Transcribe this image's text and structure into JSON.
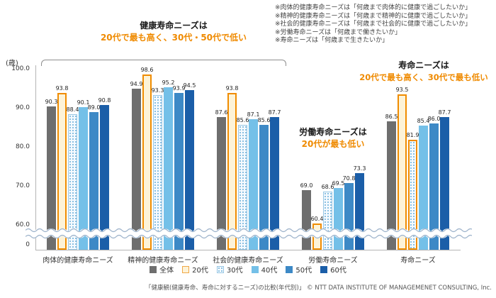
{
  "chart_data": {
    "type": "bar",
    "unit_label": "(歳)",
    "categories": [
      "肉体的健康寿命ニーズ",
      "精神的健康寿命ニーズ",
      "社会的健康寿命ニーズ",
      "労働寿命ニーズ",
      "寿命ニーズ"
    ],
    "series": [
      {
        "name": "全体",
        "color": "#6e6e6e",
        "values": [
          90.3,
          94.9,
          87.6,
          69.0,
          86.5
        ]
      },
      {
        "name": "20代",
        "color": "#fdf3d8",
        "border": "#f08c00",
        "values": [
          93.8,
          98.6,
          93.8,
          60.4,
          93.5
        ]
      },
      {
        "name": "30代",
        "color": "#f5fafe",
        "pattern": "dots",
        "values": [
          88.4,
          93.3,
          85.6,
          68.6,
          81.9
        ]
      },
      {
        "name": "40代",
        "color": "#74c0e8",
        "values": [
          90.1,
          95.2,
          87.1,
          69.5,
          85.4
        ]
      },
      {
        "name": "50代",
        "color": "#3d89c6",
        "values": [
          89.0,
          93.9,
          85.6,
          70.8,
          86.0
        ]
      },
      {
        "name": "60代",
        "color": "#1b5ea8",
        "values": [
          90.8,
          94.5,
          87.7,
          73.3,
          87.7
        ]
      }
    ],
    "y_ticks": [
      {
        "label": "100.0",
        "v": 100
      },
      {
        "label": "90.0",
        "v": 90
      },
      {
        "label": "80.0",
        "v": 80
      },
      {
        "label": "70.0",
        "v": 70
      },
      {
        "label": "60.0",
        "v": 60
      },
      {
        "label": "0",
        "v": 0
      }
    ],
    "ylim_visible": [
      60,
      100
    ],
    "axis_break": true,
    "grid": false,
    "legend_position": "bottom",
    "highlights": [
      [
        0,
        1
      ],
      [
        1,
        1
      ],
      [
        2,
        1
      ],
      [
        3,
        1
      ],
      [
        4,
        1
      ],
      [
        4,
        2
      ]
    ]
  },
  "annotations": {
    "accent_color": "#ef8a00",
    "health": {
      "line1": "健康寿命ニーズは",
      "line2": "20代で最も高く、30代・50代で低い"
    },
    "labor": {
      "line1": "労働寿命ニーズは",
      "line2": "20代が最も低い"
    },
    "life": {
      "line1": "寿命ニーズは",
      "line2": "20代で最も高く、30代で最も低い"
    },
    "notes": [
      "※肉体的健康寿命ニーズは「何歳まで肉体的に健康で過ごしたいか」",
      "※精神的健康寿命ニーズは「何歳まで精神的に健康で過ごしたいか」",
      "※社会的健康寿命ニーズは「何歳まで社会的に健康で過ごしたいか」",
      "※労働寿命ニーズは「何歳まで働きたいか」",
      "※寿命ニーズは「何歳まで生きたいか」"
    ]
  },
  "footer": {
    "caption": "「健康観(健康寿命、寿命に対するニーズ)の比較(年代別)」 © NTT DATA INSTITUTE OF MANAGEMENET CONSULTING, Inc."
  }
}
